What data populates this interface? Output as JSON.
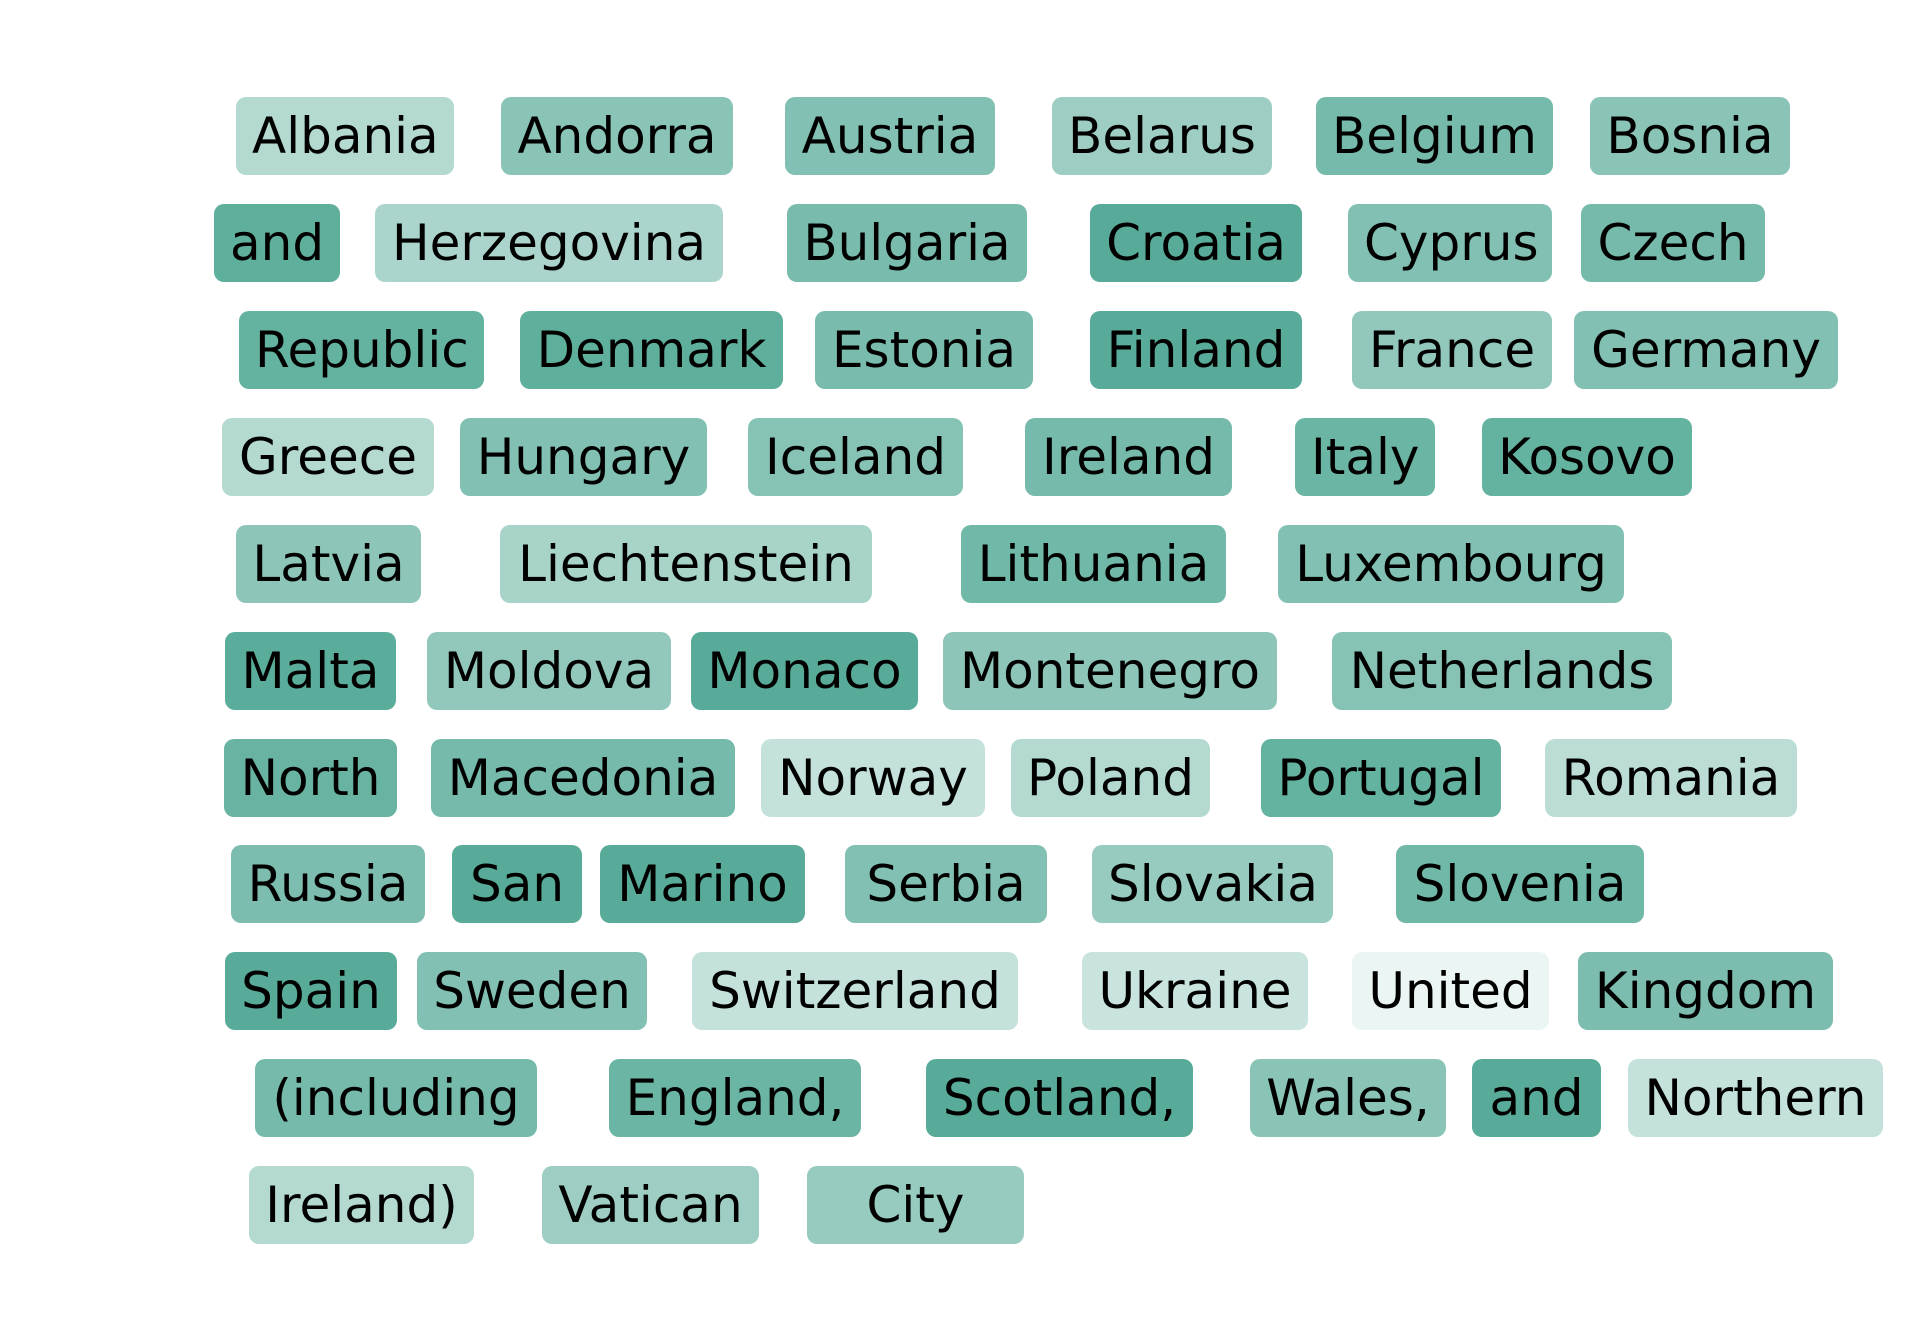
{
  "chart_data": {
    "type": "word-cloud",
    "base_color": "#57ab98",
    "words": [
      {
        "text": "Albania",
        "shade": 0.45
      },
      {
        "text": "Andorra",
        "shade": 0.7
      },
      {
        "text": "Austria",
        "shade": 0.75
      },
      {
        "text": "Belarus",
        "shade": 0.58
      },
      {
        "text": "Belgium",
        "shade": 0.82
      },
      {
        "text": "Bosnia",
        "shade": 0.7
      },
      {
        "text": "and",
        "shade": 0.95
      },
      {
        "text": "Herzegovina",
        "shade": 0.5
      },
      {
        "text": "Bulgaria",
        "shade": 0.8
      },
      {
        "text": "Croatia",
        "shade": 1.0
      },
      {
        "text": "Cyprus",
        "shade": 0.75
      },
      {
        "text": "Czech",
        "shade": 0.82
      },
      {
        "text": "Republic",
        "shade": 0.92
      },
      {
        "text": "Denmark",
        "shade": 0.95
      },
      {
        "text": "Estonia",
        "shade": 0.8
      },
      {
        "text": "Finland",
        "shade": 1.0
      },
      {
        "text": "France",
        "shade": 0.65
      },
      {
        "text": "Germany",
        "shade": 0.75
      },
      {
        "text": "Greece",
        "shade": 0.45
      },
      {
        "text": "Hungary",
        "shade": 0.75
      },
      {
        "text": "Iceland",
        "shade": 0.72
      },
      {
        "text": "Ireland",
        "shade": 0.82
      },
      {
        "text": "Italy",
        "shade": 0.88
      },
      {
        "text": "Kosovo",
        "shade": 0.92
      },
      {
        "text": "Latvia",
        "shade": 0.68
      },
      {
        "text": "Liechtenstein",
        "shade": 0.52
      },
      {
        "text": "Lithuania",
        "shade": 0.85
      },
      {
        "text": "Luxembourg",
        "shade": 0.75
      },
      {
        "text": "Malta",
        "shade": 0.98
      },
      {
        "text": "Moldova",
        "shade": 0.65
      },
      {
        "text": "Monaco",
        "shade": 1.0
      },
      {
        "text": "Montenegro",
        "shade": 0.68
      },
      {
        "text": "Netherlands",
        "shade": 0.72
      },
      {
        "text": "North",
        "shade": 0.9
      },
      {
        "text": "Macedonia",
        "shade": 0.82
      },
      {
        "text": "Norway",
        "shade": 0.35
      },
      {
        "text": "Poland",
        "shade": 0.45
      },
      {
        "text": "Portugal",
        "shade": 0.92
      },
      {
        "text": "Romania",
        "shade": 0.4
      },
      {
        "text": "Russia",
        "shade": 0.78
      },
      {
        "text": "San",
        "shade": 1.0
      },
      {
        "text": "Marino",
        "shade": 1.0
      },
      {
        "text": "Serbia",
        "shade": 0.75
      },
      {
        "text": "Slovakia",
        "shade": 0.62
      },
      {
        "text": "Slovenia",
        "shade": 0.85
      },
      {
        "text": "Spain",
        "shade": 1.0
      },
      {
        "text": "Sweden",
        "shade": 0.75
      },
      {
        "text": "Switzerland",
        "shade": 0.35
      },
      {
        "text": "Ukraine",
        "shade": 0.32
      },
      {
        "text": "United",
        "shade": 0.12
      },
      {
        "text": "Kingdom",
        "shade": 0.78
      },
      {
        "text": "(including",
        "shade": 0.82
      },
      {
        "text": "England,",
        "shade": 0.88
      },
      {
        "text": "Scotland,",
        "shade": 1.0
      },
      {
        "text": "Wales,",
        "shade": 0.7
      },
      {
        "text": "and",
        "shade": 1.0
      },
      {
        "text": "Northern",
        "shade": 0.35
      },
      {
        "text": "Ireland)",
        "shade": 0.45
      },
      {
        "text": "Vatican",
        "shade": 0.58
      },
      {
        "text": "City",
        "shade": 0.62
      }
    ]
  }
}
